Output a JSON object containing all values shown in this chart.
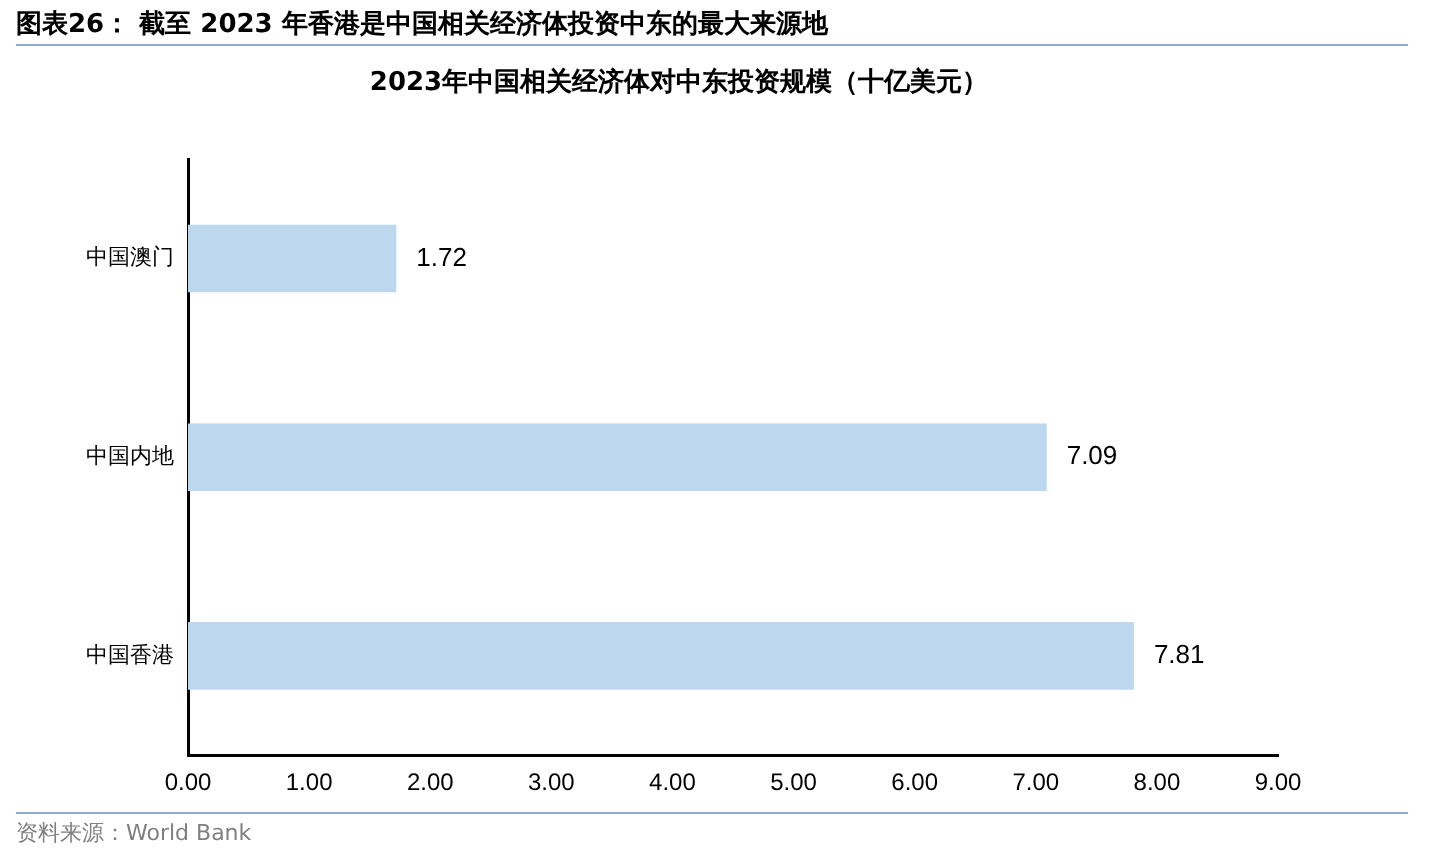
{
  "chart_data": {
    "type": "bar",
    "orientation": "horizontal",
    "title": "图表26： 截至 2023 年香港是中国相关经济体投资中东的最大来源地",
    "subtitle": "2023年中国相关经济体对中东投资规模（十亿美元）",
    "categories": [
      "中国澳门",
      "中国内地",
      "中国香港"
    ],
    "values": [
      1.72,
      7.09,
      7.81
    ],
    "color": "#bdd7ee",
    "data_labels": true,
    "xlim": [
      0,
      9
    ],
    "xticks": [
      {
        "value": 0,
        "label": "0.00"
      },
      {
        "value": 1,
        "label": "1.00"
      },
      {
        "value": 2,
        "label": "2.00"
      },
      {
        "value": 3,
        "label": "3.00"
      },
      {
        "value": 4,
        "label": "4.00"
      },
      {
        "value": 5,
        "label": "5.00"
      },
      {
        "value": 6,
        "label": "6.00"
      },
      {
        "value": 7,
        "label": "7.00"
      },
      {
        "value": 8,
        "label": "8.00"
      },
      {
        "value": 9,
        "label": "9.00"
      }
    ],
    "grid": false,
    "legend": false,
    "annotations": [
      "资料来源：World Bank"
    ]
  }
}
